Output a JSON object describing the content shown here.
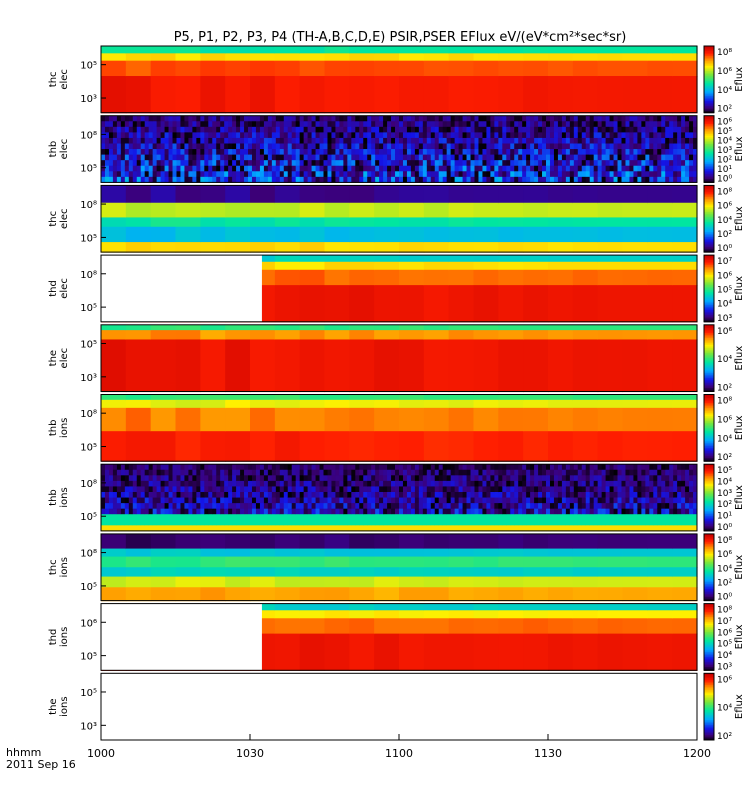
{
  "chart_data": {
    "type": "heatmap",
    "title": "P5, P1, P2, P3, P4 (TH-A,B,C,D,E) PSIR,PSER EFlux eV/(eV*cm²*sec*sr)",
    "x_axis": {
      "range": [
        "1000",
        "1200"
      ],
      "tick_labels": [
        "1000",
        "1030",
        "1100",
        "1130",
        "1200"
      ],
      "label_line1": "hhmm",
      "label_line2": "2011 Sep 16"
    },
    "colorbar_label": "Eflux",
    "panels": [
      {
        "name": "thc elec",
        "ylabel_line1": "thc",
        "ylabel_line2": "elec",
        "yticks": [
          "10⁵",
          "10³"
        ],
        "colorbar_ticks": [
          "10⁸",
          "10⁶",
          "10⁴",
          "10²"
        ],
        "pattern": "banded",
        "bands": [
          {
            "from": 0,
            "to": 0.11,
            "level": 0.45
          },
          {
            "from": 0.11,
            "to": 0.22,
            "level": 0.72
          },
          {
            "from": 0.22,
            "to": 0.45,
            "level": 0.86
          },
          {
            "from": 0.45,
            "to": 1,
            "level": 0.92
          }
        ]
      },
      {
        "name": "thb elec",
        "ylabel_line1": "thb",
        "ylabel_line2": "elec",
        "yticks": [
          "10⁸",
          "10⁵"
        ],
        "colorbar_ticks": [
          "10⁶",
          "10⁵",
          "10⁴",
          "10³",
          "10²",
          "10¹",
          "10⁰"
        ],
        "pattern": "noise",
        "noise_level": [
          0.0,
          0.38
        ]
      },
      {
        "name": "thc elec",
        "ylabel_line1": "thc",
        "ylabel_line2": "elec",
        "yticks": [
          "10⁸",
          "10⁵"
        ],
        "colorbar_ticks": [
          "10⁸",
          "10⁶",
          "10⁴",
          "10²",
          "10⁰"
        ],
        "pattern": "banded",
        "bands": [
          {
            "from": 0,
            "to": 0.26,
            "level": 0.1
          },
          {
            "from": 0.26,
            "to": 0.48,
            "level": 0.65
          },
          {
            "from": 0.48,
            "to": 0.62,
            "level": 0.45
          },
          {
            "from": 0.62,
            "to": 0.85,
            "level": 0.36
          },
          {
            "from": 0.85,
            "to": 1,
            "level": 0.72
          }
        ]
      },
      {
        "name": "thd elec",
        "ylabel_line1": "thd",
        "ylabel_line2": "elec",
        "yticks": [
          "10⁸",
          "10⁵"
        ],
        "colorbar_ticks": [
          "10⁷",
          "10⁶",
          "10⁵",
          "10⁴",
          "10³"
        ],
        "pattern": "banded",
        "blank_until": 0.27,
        "bands": [
          {
            "from": 0,
            "to": 0.1,
            "level": 0.4
          },
          {
            "from": 0.1,
            "to": 0.22,
            "level": 0.72
          },
          {
            "from": 0.22,
            "to": 0.45,
            "level": 0.84
          },
          {
            "from": 0.45,
            "to": 1,
            "level": 0.93
          }
        ]
      },
      {
        "name": "the elec",
        "ylabel_line1": "the",
        "ylabel_line2": "elec",
        "yticks": [
          "10⁵",
          "10³"
        ],
        "colorbar_ticks": [
          "10⁶",
          "10⁴",
          "10²"
        ],
        "pattern": "banded",
        "bands": [
          {
            "from": 0,
            "to": 0.08,
            "level": 0.5
          },
          {
            "from": 0.08,
            "to": 0.22,
            "level": 0.8
          },
          {
            "from": 0.22,
            "to": 1,
            "level": 0.93
          }
        ]
      },
      {
        "name": "thb ions",
        "ylabel_line1": "thb",
        "ylabel_line2": "ions",
        "yticks": [
          "10⁸",
          "10⁵"
        ],
        "colorbar_ticks": [
          "10⁸",
          "10⁶",
          "10⁴",
          "10²"
        ],
        "pattern": "banded",
        "bands": [
          {
            "from": 0,
            "to": 0.08,
            "level": 0.5
          },
          {
            "from": 0.08,
            "to": 0.2,
            "level": 0.68
          },
          {
            "from": 0.2,
            "to": 0.55,
            "level": 0.82
          },
          {
            "from": 0.55,
            "to": 1,
            "level": 0.9
          }
        ]
      },
      {
        "name": "thb ions",
        "ylabel_line1": "thb",
        "ylabel_line2": "ions",
        "yticks": [
          "10⁸",
          "10⁵"
        ],
        "colorbar_ticks": [
          "10⁵",
          "10⁴",
          "10³",
          "10²",
          "10¹",
          "10⁰"
        ],
        "pattern": "noise",
        "noise_level": [
          0.0,
          0.3
        ],
        "bands": [
          {
            "from": 0.72,
            "to": 0.84,
            "level": 0.45
          },
          {
            "from": 0.84,
            "to": 1,
            "level": 0.72
          }
        ]
      },
      {
        "name": "thc ions",
        "ylabel_line1": "thc",
        "ylabel_line2": "ions",
        "yticks": [
          "10⁸",
          "10⁵"
        ],
        "colorbar_ticks": [
          "10⁸",
          "10⁶",
          "10⁴",
          "10²",
          "10⁰"
        ],
        "pattern": "banded",
        "bands": [
          {
            "from": 0,
            "to": 0.22,
            "level": 0.08
          },
          {
            "from": 0.22,
            "to": 0.34,
            "level": 0.38
          },
          {
            "from": 0.34,
            "to": 0.5,
            "level": 0.5
          },
          {
            "from": 0.5,
            "to": 0.64,
            "level": 0.4
          },
          {
            "from": 0.64,
            "to": 0.8,
            "level": 0.66
          },
          {
            "from": 0.8,
            "to": 1,
            "level": 0.78
          }
        ]
      },
      {
        "name": "thd ions",
        "ylabel_line1": "thd",
        "ylabel_line2": "ions",
        "yticks": [
          "10⁶",
          "10⁵"
        ],
        "colorbar_ticks": [
          "10⁸",
          "10⁷",
          "10⁶",
          "10⁵",
          "10⁴",
          "10³"
        ],
        "pattern": "banded",
        "blank_until": 0.27,
        "bands": [
          {
            "from": 0,
            "to": 0.1,
            "level": 0.4
          },
          {
            "from": 0.1,
            "to": 0.22,
            "level": 0.7
          },
          {
            "from": 0.22,
            "to": 0.45,
            "level": 0.84
          },
          {
            "from": 0.45,
            "to": 1,
            "level": 0.93
          }
        ]
      },
      {
        "name": "the ions",
        "ylabel_line1": "the",
        "ylabel_line2": "ions",
        "yticks": [
          "10⁵",
          "10³"
        ],
        "colorbar_ticks": [
          "10⁶",
          "10⁴",
          "10²"
        ],
        "pattern": "empty"
      }
    ]
  }
}
